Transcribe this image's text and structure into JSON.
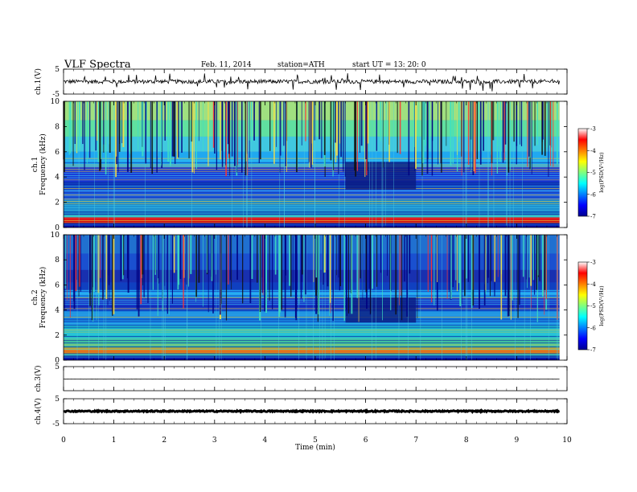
{
  "header": {
    "title": "VLF  Spectra",
    "date": "Feb. 11, 2014",
    "station": "station=ATH",
    "start": "start  UT  =   13: 20: 0"
  },
  "chart_data": [
    {
      "type": "line",
      "name": "ch1-waveform",
      "ylabel": "ch.1(V)",
      "ylim": [
        -5,
        5
      ],
      "yticks": [
        "5",
        "-5"
      ],
      "baseline": 0,
      "amplitude": 1.6
    },
    {
      "type": "heatmap",
      "name": "ch1-spectrogram",
      "ylabel": "ch.1\nFrequency  (kHz)",
      "ylim": [
        0,
        10
      ],
      "yticks": [
        "0",
        "2",
        "4",
        "6",
        "8",
        "10"
      ],
      "colorbar": {
        "label": "log(PSD(V²/Hz)",
        "range": [
          -7,
          -3
        ],
        "ticks": [
          "-7",
          "-6",
          "-5",
          "-4",
          "-3"
        ]
      }
    },
    {
      "type": "heatmap",
      "name": "ch2-spectrogram",
      "ylabel": "ch.2\nFrequency  (kHz)",
      "ylim": [
        0,
        10
      ],
      "yticks": [
        "0",
        "2",
        "4",
        "6",
        "8",
        "10"
      ],
      "colorbar": {
        "label": "log(PSD(V²/Hz)",
        "range": [
          -7,
          -3
        ],
        "ticks": [
          "-7",
          "-6",
          "-5",
          "-4",
          "-3"
        ]
      }
    },
    {
      "type": "line",
      "name": "ch3-waveform",
      "ylabel": "ch.3(V)",
      "ylim": [
        -5,
        5
      ],
      "yticks": [
        "5"
      ],
      "baseline": -0.2,
      "amplitude": 0.05
    },
    {
      "type": "line",
      "name": "ch4-waveform",
      "ylabel": "ch.4(V)",
      "ylim": [
        -5,
        5
      ],
      "yticks": [
        "5",
        "-5"
      ],
      "baseline": 0,
      "amplitude": 0.5
    }
  ],
  "time_axis": {
    "xlabel": "Time  (min)",
    "xlim": [
      0,
      10
    ],
    "ticks": [
      "0",
      "1",
      "2",
      "3",
      "4",
      "5",
      "6",
      "7",
      "8",
      "9",
      "10"
    ],
    "data_end": 9.85
  }
}
